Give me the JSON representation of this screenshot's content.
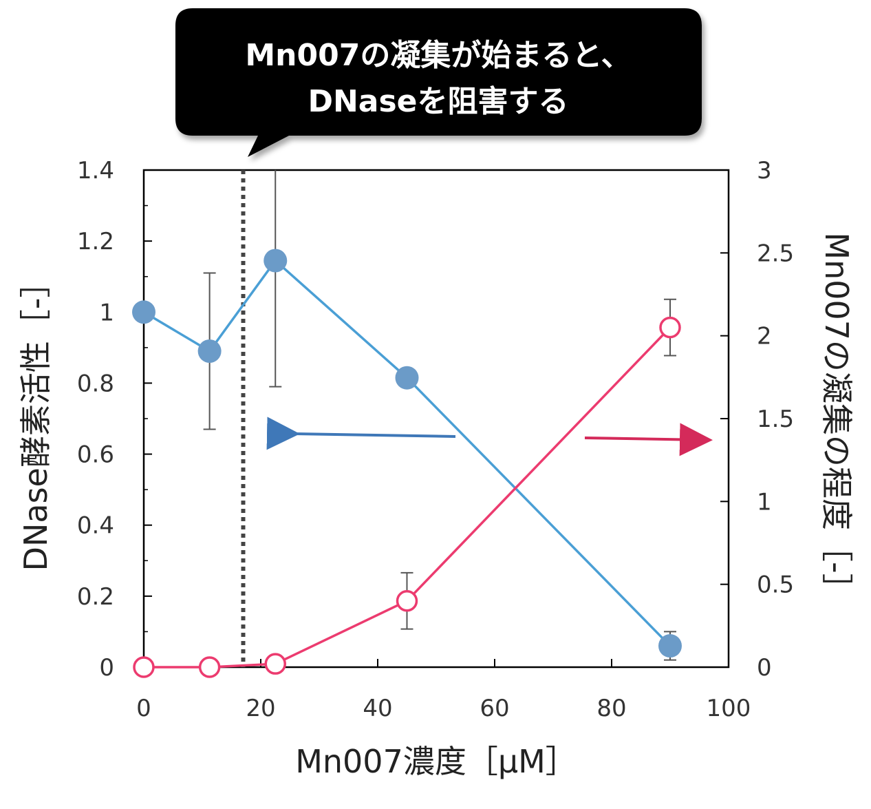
{
  "annotation": {
    "line1": "Mn007の凝集が始まると、",
    "line2": "DNaseを阻害する"
  },
  "chart_data": {
    "type": "line",
    "xlabel": "Mn007濃度［μM］",
    "ylabel_left": "DNase酵素活性［-］",
    "ylabel_right": "Mn007の凝集の程度［-］",
    "xlim": [
      0,
      100
    ],
    "ylim_left": [
      0,
      1.4
    ],
    "ylim_right": [
      0,
      3
    ],
    "x_ticks": [
      "0",
      "20",
      "40",
      "60",
      "80",
      "100"
    ],
    "y_left_ticks": [
      "0",
      "0.2",
      "0.4",
      "0.6",
      "0.8",
      "1",
      "1.2",
      "1.4"
    ],
    "y_right_ticks": [
      "0",
      "0.5",
      "1",
      "1.5",
      "2",
      "2.5",
      "3"
    ],
    "grid": false,
    "threshold_x": 17,
    "series": [
      {
        "axis": "left",
        "color": "#4a9fd5",
        "marker": "filled-circle",
        "marker_color": "#6b9bc8",
        "x": [
          0,
          11.25,
          22.5,
          45,
          90
        ],
        "y": [
          1.0,
          0.89,
          1.145,
          0.815,
          0.06
        ],
        "err": [
          0,
          0.22,
          0.355,
          0.02,
          0.04
        ]
      },
      {
        "axis": "right",
        "color": "#ec3b6f",
        "marker": "open-circle",
        "marker_color": "#ec3b6f",
        "x": [
          0,
          11.25,
          22.5,
          45,
          90
        ],
        "y": [
          0,
          0,
          0.02,
          0.4,
          2.05
        ],
        "err": [
          0,
          0,
          0.02,
          0.17,
          0.17
        ]
      }
    ],
    "arrows": [
      {
        "direction": "left",
        "axis": "left",
        "color": "#3f78b8"
      },
      {
        "direction": "right",
        "axis": "right",
        "color": "#d42a5a"
      }
    ]
  }
}
